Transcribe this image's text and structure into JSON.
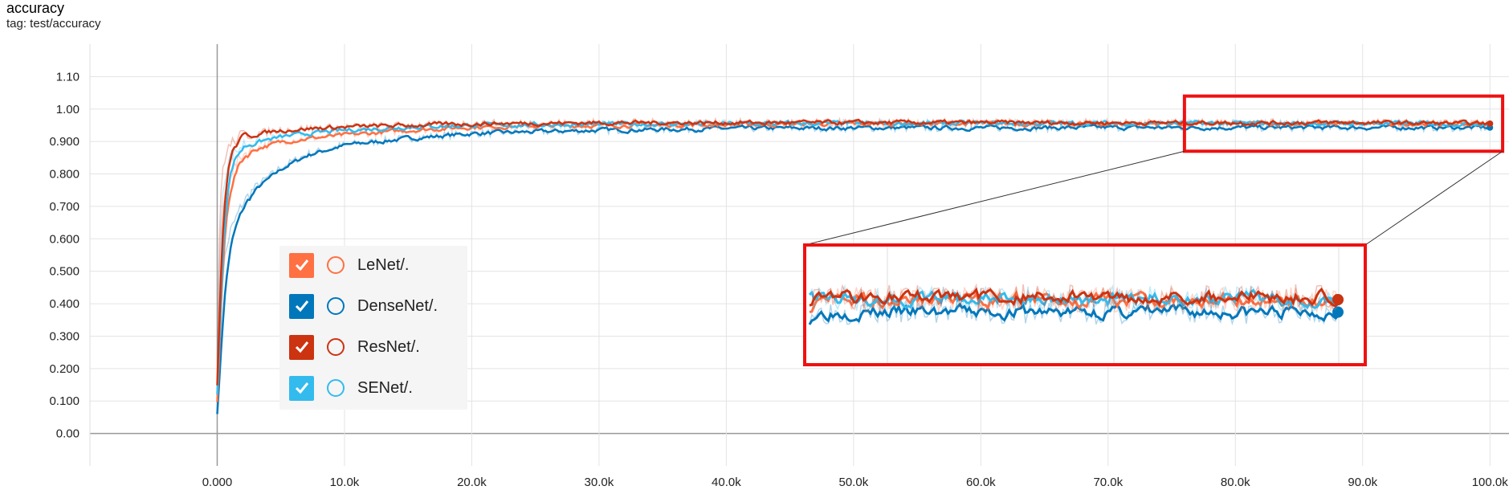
{
  "header": {
    "title": "accuracy",
    "tag": "tag: test/accuracy"
  },
  "colors": {
    "LeNet/.": "#ff7043",
    "DenseNet/.": "#0077bb",
    "ResNet/.": "#cc3311",
    "SENet/.": "#33bbee",
    "zoom_box": "#ee1111"
  },
  "chart_data": {
    "type": "line",
    "title": "accuracy",
    "subtitle": "tag: test/accuracy",
    "xlabel": "",
    "ylabel": "",
    "xlim": [
      -10000,
      101500
    ],
    "ylim": [
      -0.1,
      1.2
    ],
    "x_ticks": [
      0,
      10000,
      20000,
      30000,
      40000,
      50000,
      60000,
      70000,
      80000,
      90000,
      100000
    ],
    "x_tick_labels": [
      "0.000",
      "10.0k",
      "20.0k",
      "30.0k",
      "40.0k",
      "50.0k",
      "60.0k",
      "70.0k",
      "80.0k",
      "90.0k",
      "100.0k"
    ],
    "y_ticks": [
      0.0,
      0.1,
      0.2,
      0.3,
      0.4,
      0.5,
      0.6,
      0.7,
      0.8,
      0.9,
      1.0,
      1.1
    ],
    "y_tick_labels": [
      "0.00",
      "0.100",
      "0.200",
      "0.300",
      "0.400",
      "0.500",
      "0.600",
      "0.700",
      "0.800",
      "0.900",
      "1.00",
      "1.10"
    ],
    "grid": true,
    "legend": "bottom-left",
    "series": [
      {
        "name": "LeNet/.",
        "color": "#ff7043",
        "x": [
          0,
          200,
          500,
          1000,
          2000,
          3000,
          5000,
          7000,
          10000,
          15000,
          20000,
          30000,
          40000,
          50000,
          60000,
          70000,
          80000,
          90000,
          100000
        ],
        "values": [
          0.1,
          0.55,
          0.72,
          0.8,
          0.86,
          0.88,
          0.9,
          0.91,
          0.92,
          0.935,
          0.945,
          0.95,
          0.952,
          0.955,
          0.955,
          0.955,
          0.955,
          0.955,
          0.955
        ]
      },
      {
        "name": "DenseNet/.",
        "color": "#0077bb",
        "x": [
          0,
          200,
          500,
          1000,
          2000,
          3000,
          5000,
          7000,
          10000,
          15000,
          20000,
          30000,
          40000,
          50000,
          60000,
          70000,
          80000,
          90000,
          100000
        ],
        "values": [
          0.08,
          0.35,
          0.52,
          0.62,
          0.71,
          0.76,
          0.82,
          0.86,
          0.89,
          0.91,
          0.925,
          0.935,
          0.94,
          0.942,
          0.942,
          0.943,
          0.943,
          0.943,
          0.943
        ]
      },
      {
        "name": "ResNet/.",
        "color": "#cc3311",
        "x": [
          0,
          200,
          500,
          1000,
          2000,
          3000,
          5000,
          7000,
          10000,
          15000,
          20000,
          30000,
          40000,
          50000,
          60000,
          70000,
          80000,
          90000,
          100000
        ],
        "values": [
          0.15,
          0.7,
          0.84,
          0.89,
          0.92,
          0.925,
          0.935,
          0.94,
          0.945,
          0.95,
          0.955,
          0.958,
          0.958,
          0.958,
          0.958,
          0.958,
          0.958,
          0.958,
          0.955
        ]
      },
      {
        "name": "SENet/.",
        "color": "#33bbee",
        "x": [
          0,
          200,
          500,
          1000,
          2000,
          3000,
          5000,
          7000,
          10000,
          15000,
          20000,
          30000,
          40000,
          50000,
          60000,
          70000,
          80000,
          90000,
          100000
        ],
        "values": [
          0.12,
          0.6,
          0.78,
          0.85,
          0.89,
          0.9,
          0.915,
          0.925,
          0.935,
          0.945,
          0.95,
          0.953,
          0.955,
          0.956,
          0.956,
          0.956,
          0.956,
          0.956,
          0.955
        ]
      }
    ],
    "zoom_region": {
      "x": [
        76000,
        101000
      ],
      "y": [
        0.87,
        1.04
      ]
    }
  }
}
